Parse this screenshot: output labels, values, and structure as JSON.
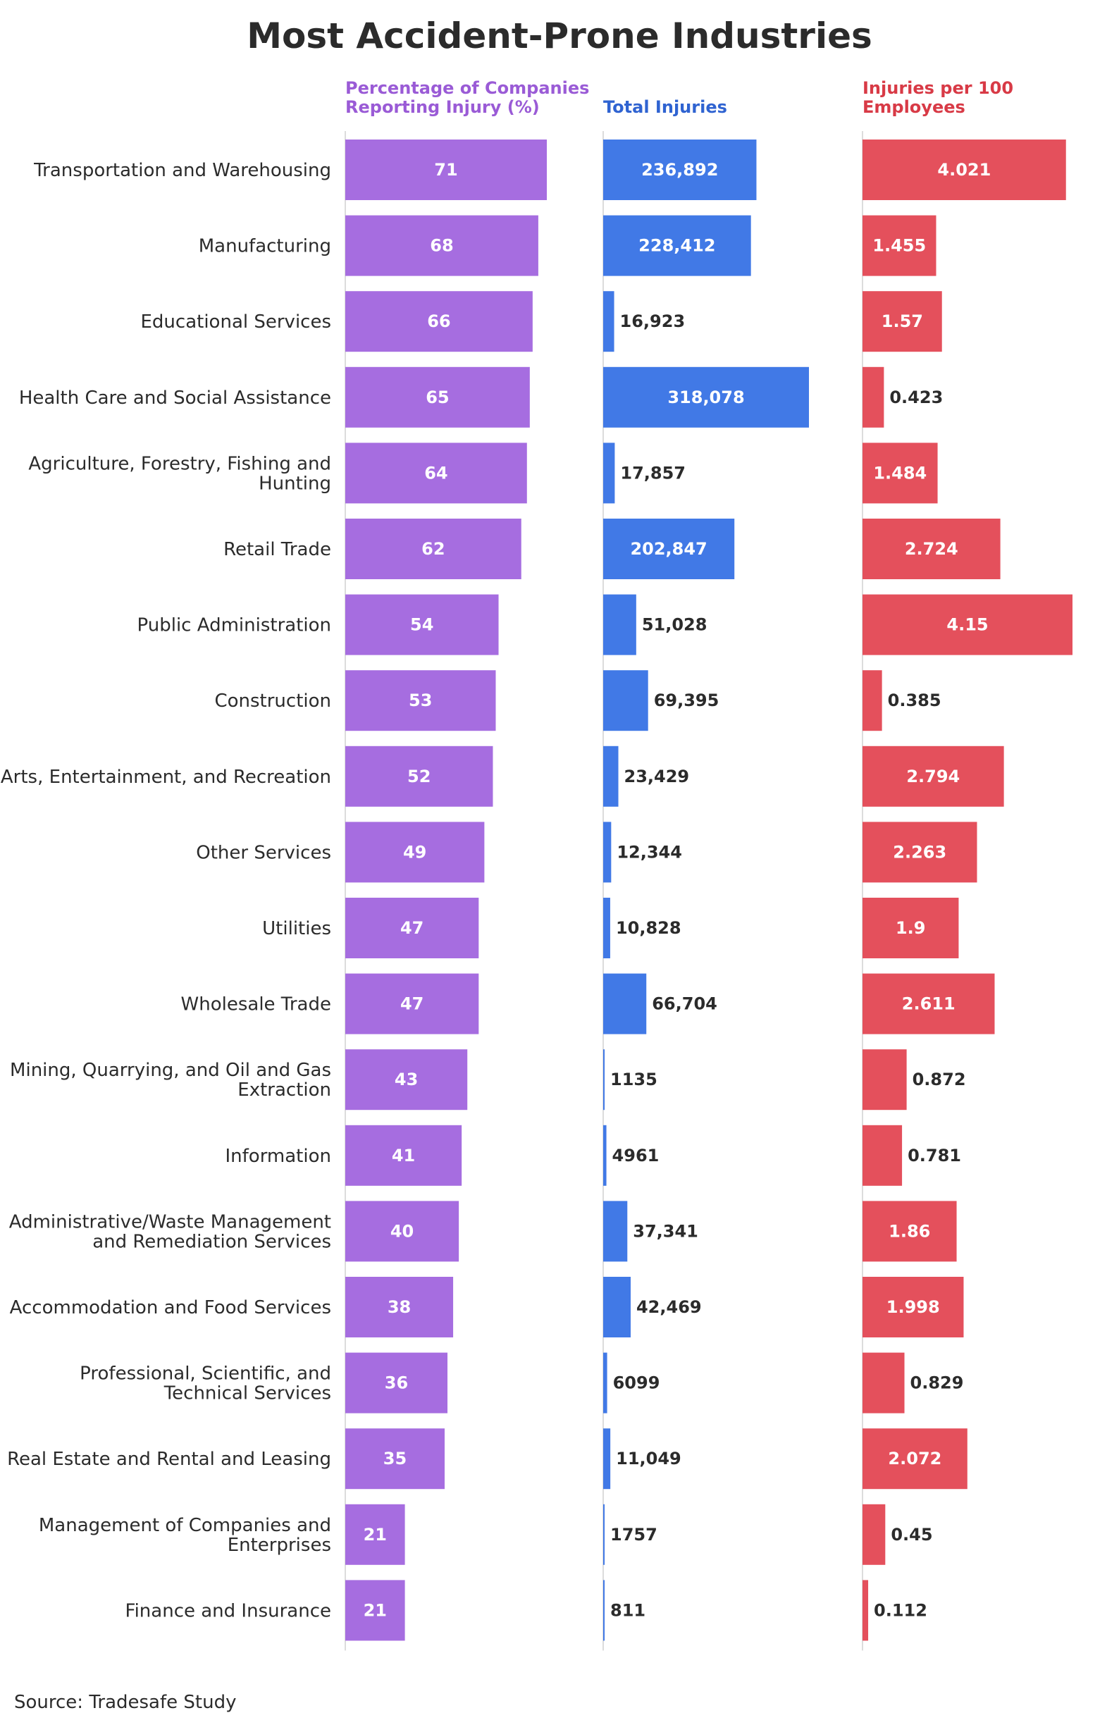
{
  "chart_data": {
    "type": "bar",
    "title": "Most Accident-Prone Industries",
    "source": "Source: Tradesafe Study",
    "colors": {
      "pct": "#a66de0",
      "total": "#4179e6",
      "rate": "#e4505c",
      "pct_header": "#9a5bd6",
      "total_header": "#2f63d1",
      "rate_header": "#d83a46",
      "axis": "#d0d0d0"
    },
    "categories": [
      [
        "Transportation and Warehousing"
      ],
      [
        "Manufacturing"
      ],
      [
        "Educational Services"
      ],
      [
        "Health Care and Social Assistance"
      ],
      [
        "Agriculture, Forestry, Fishing and",
        "Hunting"
      ],
      [
        "Retail Trade"
      ],
      [
        "Public Administration"
      ],
      [
        "Construction"
      ],
      [
        "Arts, Entertainment, and Recreation"
      ],
      [
        "Other Services"
      ],
      [
        "Utilities"
      ],
      [
        "Wholesale Trade"
      ],
      [
        "Mining, Quarrying, and Oil and Gas",
        "Extraction"
      ],
      [
        "Information"
      ],
      [
        "Administrative/Waste Management",
        "and Remediation Services"
      ],
      [
        "Accommodation and Food Services"
      ],
      [
        "Professional, Scientific, and",
        "Technical Services"
      ],
      [
        "Real Estate and Rental and Leasing"
      ],
      [
        "Management of Companies and",
        "Enterprises"
      ],
      [
        "Finance and Insurance"
      ]
    ],
    "series": [
      {
        "name": "Percentage of Companies Reporting Injury (%)",
        "header_lines": [
          "Percentage of Companies",
          "Reporting Injury (%)"
        ],
        "color_key": "pct",
        "max": 71,
        "values": [
          71,
          68,
          66,
          65,
          64,
          62,
          54,
          53,
          52,
          49,
          47,
          47,
          43,
          41,
          40,
          38,
          36,
          35,
          21,
          21
        ],
        "labels": [
          "71",
          "68",
          "66",
          "65",
          "64",
          "62",
          "54",
          "53",
          "52",
          "49",
          "47",
          "47",
          "43",
          "41",
          "40",
          "38",
          "36",
          "35",
          "21",
          "21"
        ]
      },
      {
        "name": "Total Injuries",
        "header_lines": [
          "Total Injuries"
        ],
        "color_key": "total",
        "max": 318078,
        "values": [
          236892,
          228412,
          16923,
          318078,
          17857,
          202847,
          51028,
          69395,
          23429,
          12344,
          10828,
          66704,
          1135,
          4961,
          37341,
          42469,
          6099,
          11049,
          1757,
          811
        ],
        "labels": [
          "236,892",
          "228,412",
          "16,923",
          "318,078",
          "17,857",
          "202,847",
          "51,028",
          "69,395",
          "23,429",
          "12,344",
          "10,828",
          "66,704",
          "1135",
          "4961",
          "37,341",
          "42,469",
          "6099",
          "11,049",
          "1757",
          "811"
        ]
      },
      {
        "name": "Injuries per 100 Employees",
        "header_lines": [
          "Injuries per 100",
          "Employees"
        ],
        "color_key": "rate",
        "max": 4.15,
        "values": [
          4.021,
          1.455,
          1.57,
          0.423,
          1.484,
          2.724,
          4.15,
          0.385,
          2.794,
          2.263,
          1.9,
          2.611,
          0.872,
          0.781,
          1.86,
          1.998,
          0.829,
          2.072,
          0.45,
          0.112
        ],
        "labels": [
          "4.021",
          "1.455",
          "1.57",
          "0.423",
          "1.484",
          "2.724",
          "4.15",
          "0.385",
          "2.794",
          "2.263",
          "1.9",
          "2.611",
          "0.872",
          "0.781",
          "1.86",
          "1.998",
          "0.829",
          "2.072",
          "0.45",
          "0.112"
        ]
      }
    ]
  }
}
